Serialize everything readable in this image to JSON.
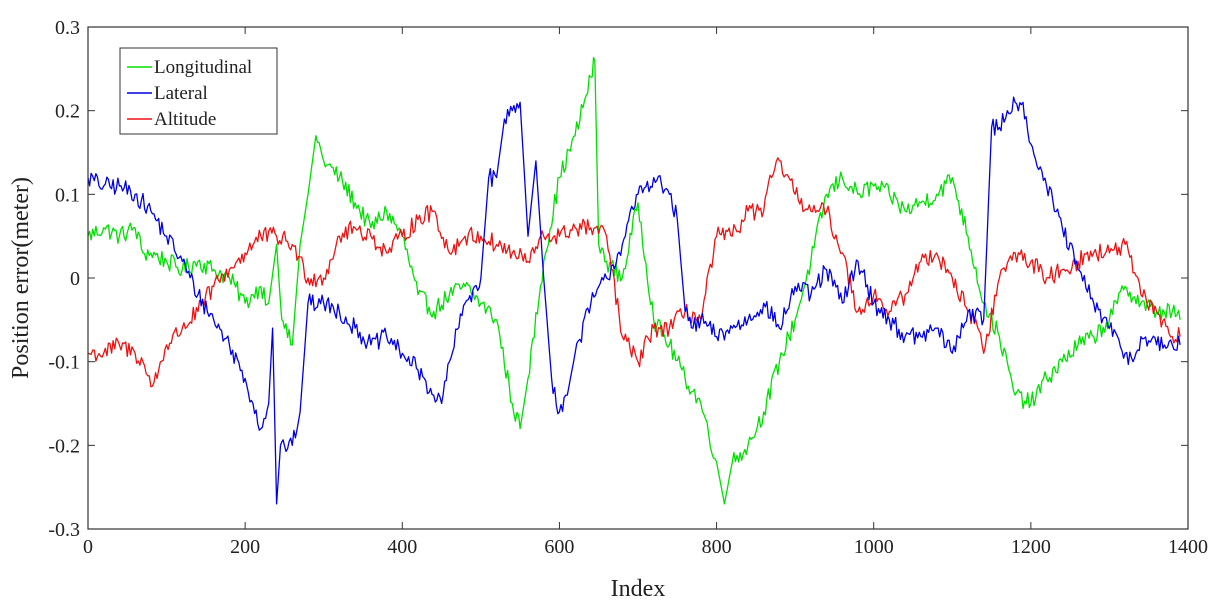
{
  "chart_data": {
    "type": "line",
    "title": "",
    "xlabel": "Index",
    "ylabel": "Position error(meter)",
    "xlim": [
      0,
      1400
    ],
    "ylim": [
      -0.3,
      0.3
    ],
    "xticks": [
      0,
      200,
      400,
      600,
      800,
      1000,
      1200,
      1400
    ],
    "yticks": [
      -0.3,
      -0.2,
      -0.1,
      0,
      0.1,
      0.2,
      0.3
    ],
    "xtick_labels": [
      "0",
      "200",
      "400",
      "600",
      "800",
      "1000",
      "1200",
      "1400"
    ],
    "ytick_labels": [
      "-0.3",
      "-0.2",
      "-0.1",
      "0",
      "0.1",
      "0.2",
      "0.3"
    ],
    "grid": false,
    "legend_position": "top-left",
    "series": [
      {
        "name": "Longitudinal",
        "color": "#00e000",
        "x": [
          0,
          20,
          40,
          60,
          70,
          80,
          100,
          120,
          140,
          160,
          180,
          200,
          210,
          220,
          230,
          240,
          245,
          250,
          260,
          270,
          280,
          290,
          300,
          320,
          340,
          360,
          380,
          400,
          420,
          440,
          460,
          480,
          500,
          520,
          540,
          550,
          560,
          580,
          600,
          620,
          640,
          645,
          650,
          660,
          680,
          700,
          720,
          740,
          760,
          780,
          800,
          810,
          820,
          840,
          860,
          880,
          900,
          920,
          940,
          960,
          980,
          1000,
          1020,
          1040,
          1060,
          1080,
          1100,
          1120,
          1140,
          1160,
          1180,
          1200,
          1220,
          1240,
          1260,
          1280,
          1300,
          1320,
          1340,
          1360,
          1380,
          1390
        ],
        "y": [
          0.05,
          0.06,
          0.05,
          0.06,
          0.03,
          0.03,
          0.02,
          0.01,
          0.02,
          0.01,
          0.0,
          -0.03,
          -0.02,
          -0.01,
          -0.03,
          0.04,
          -0.03,
          -0.06,
          -0.08,
          0.04,
          0.1,
          0.17,
          0.14,
          0.12,
          0.09,
          0.06,
          0.08,
          0.05,
          -0.02,
          -0.04,
          -0.02,
          -0.01,
          -0.03,
          -0.05,
          -0.15,
          -0.18,
          -0.12,
          0.02,
          0.12,
          0.17,
          0.24,
          0.26,
          0.04,
          0.02,
          0.0,
          0.09,
          -0.05,
          -0.08,
          -0.12,
          -0.15,
          -0.22,
          -0.27,
          -0.22,
          -0.2,
          -0.16,
          -0.1,
          -0.05,
          0.02,
          0.1,
          0.12,
          0.1,
          0.11,
          0.1,
          0.08,
          0.09,
          0.1,
          0.12,
          0.05,
          -0.03,
          -0.07,
          -0.14,
          -0.15,
          -0.12,
          -0.1,
          -0.08,
          -0.07,
          -0.05,
          -0.01,
          -0.03,
          -0.04,
          -0.04,
          -0.05
        ]
      },
      {
        "name": "Lateral",
        "color": "#0000e6",
        "x": [
          0,
          20,
          40,
          60,
          80,
          100,
          120,
          140,
          160,
          180,
          200,
          210,
          220,
          230,
          235,
          240,
          245,
          250,
          260,
          270,
          280,
          300,
          320,
          340,
          360,
          380,
          400,
          420,
          440,
          450,
          460,
          480,
          500,
          510,
          520,
          530,
          540,
          550,
          560,
          570,
          580,
          590,
          600,
          610,
          620,
          640,
          660,
          680,
          700,
          720,
          740,
          750,
          760,
          770,
          780,
          800,
          820,
          840,
          860,
          880,
          900,
          920,
          940,
          960,
          980,
          1000,
          1020,
          1040,
          1060,
          1080,
          1100,
          1120,
          1140,
          1150,
          1160,
          1170,
          1180,
          1190,
          1200,
          1220,
          1240,
          1260,
          1280,
          1300,
          1320,
          1330,
          1340,
          1360,
          1380,
          1390
        ],
        "y": [
          0.12,
          0.11,
          0.11,
          0.1,
          0.08,
          0.05,
          0.02,
          -0.02,
          -0.05,
          -0.08,
          -0.12,
          -0.15,
          -0.18,
          -0.15,
          -0.06,
          -0.27,
          -0.2,
          -0.2,
          -0.2,
          -0.16,
          -0.03,
          -0.03,
          -0.04,
          -0.06,
          -0.08,
          -0.07,
          -0.09,
          -0.11,
          -0.14,
          -0.15,
          -0.1,
          -0.03,
          0.0,
          0.12,
          0.12,
          0.19,
          0.2,
          0.21,
          0.05,
          0.14,
          0.0,
          -0.12,
          -0.16,
          -0.14,
          -0.09,
          -0.03,
          0.0,
          0.04,
          0.1,
          0.12,
          0.1,
          0.07,
          -0.04,
          -0.06,
          -0.05,
          -0.07,
          -0.06,
          -0.05,
          -0.03,
          -0.06,
          -0.01,
          -0.02,
          0.01,
          -0.03,
          0.02,
          -0.03,
          -0.05,
          -0.07,
          -0.07,
          -0.06,
          -0.09,
          -0.04,
          -0.05,
          0.18,
          0.18,
          0.2,
          0.21,
          0.21,
          0.16,
          0.11,
          0.06,
          0.01,
          -0.03,
          -0.06,
          -0.09,
          -0.1,
          -0.07,
          -0.08,
          -0.08,
          -0.08
        ]
      },
      {
        "name": "Altitude",
        "color": "#ee1111",
        "x": [
          0,
          20,
          40,
          60,
          70,
          80,
          90,
          100,
          120,
          140,
          160,
          180,
          200,
          220,
          240,
          260,
          280,
          300,
          320,
          340,
          360,
          380,
          400,
          420,
          440,
          460,
          480,
          500,
          520,
          540,
          560,
          580,
          600,
          620,
          640,
          660,
          680,
          700,
          720,
          740,
          760,
          780,
          800,
          820,
          840,
          860,
          870,
          880,
          900,
          920,
          940,
          960,
          980,
          1000,
          1020,
          1040,
          1060,
          1080,
          1100,
          1120,
          1130,
          1140,
          1160,
          1180,
          1200,
          1220,
          1240,
          1260,
          1280,
          1300,
          1320,
          1340,
          1360,
          1380,
          1390
        ],
        "y": [
          -0.09,
          -0.09,
          -0.08,
          -0.09,
          -0.1,
          -0.13,
          -0.11,
          -0.08,
          -0.06,
          -0.04,
          -0.01,
          0.01,
          0.03,
          0.05,
          0.05,
          0.04,
          0.0,
          0.0,
          0.05,
          0.06,
          0.05,
          0.03,
          0.05,
          0.07,
          0.08,
          0.03,
          0.05,
          0.05,
          0.04,
          0.03,
          0.02,
          0.05,
          0.05,
          0.06,
          0.06,
          0.05,
          -0.07,
          -0.1,
          -0.06,
          -0.06,
          -0.04,
          -0.05,
          0.05,
          0.05,
          0.08,
          0.08,
          0.12,
          0.14,
          0.1,
          0.08,
          0.08,
          0.03,
          -0.04,
          -0.02,
          -0.04,
          -0.02,
          0.02,
          0.03,
          0.0,
          -0.04,
          -0.05,
          -0.09,
          0.0,
          0.03,
          0.02,
          0.0,
          0.01,
          0.02,
          0.03,
          0.03,
          0.04,
          -0.02,
          -0.04,
          -0.07,
          -0.07
        ]
      }
    ]
  }
}
